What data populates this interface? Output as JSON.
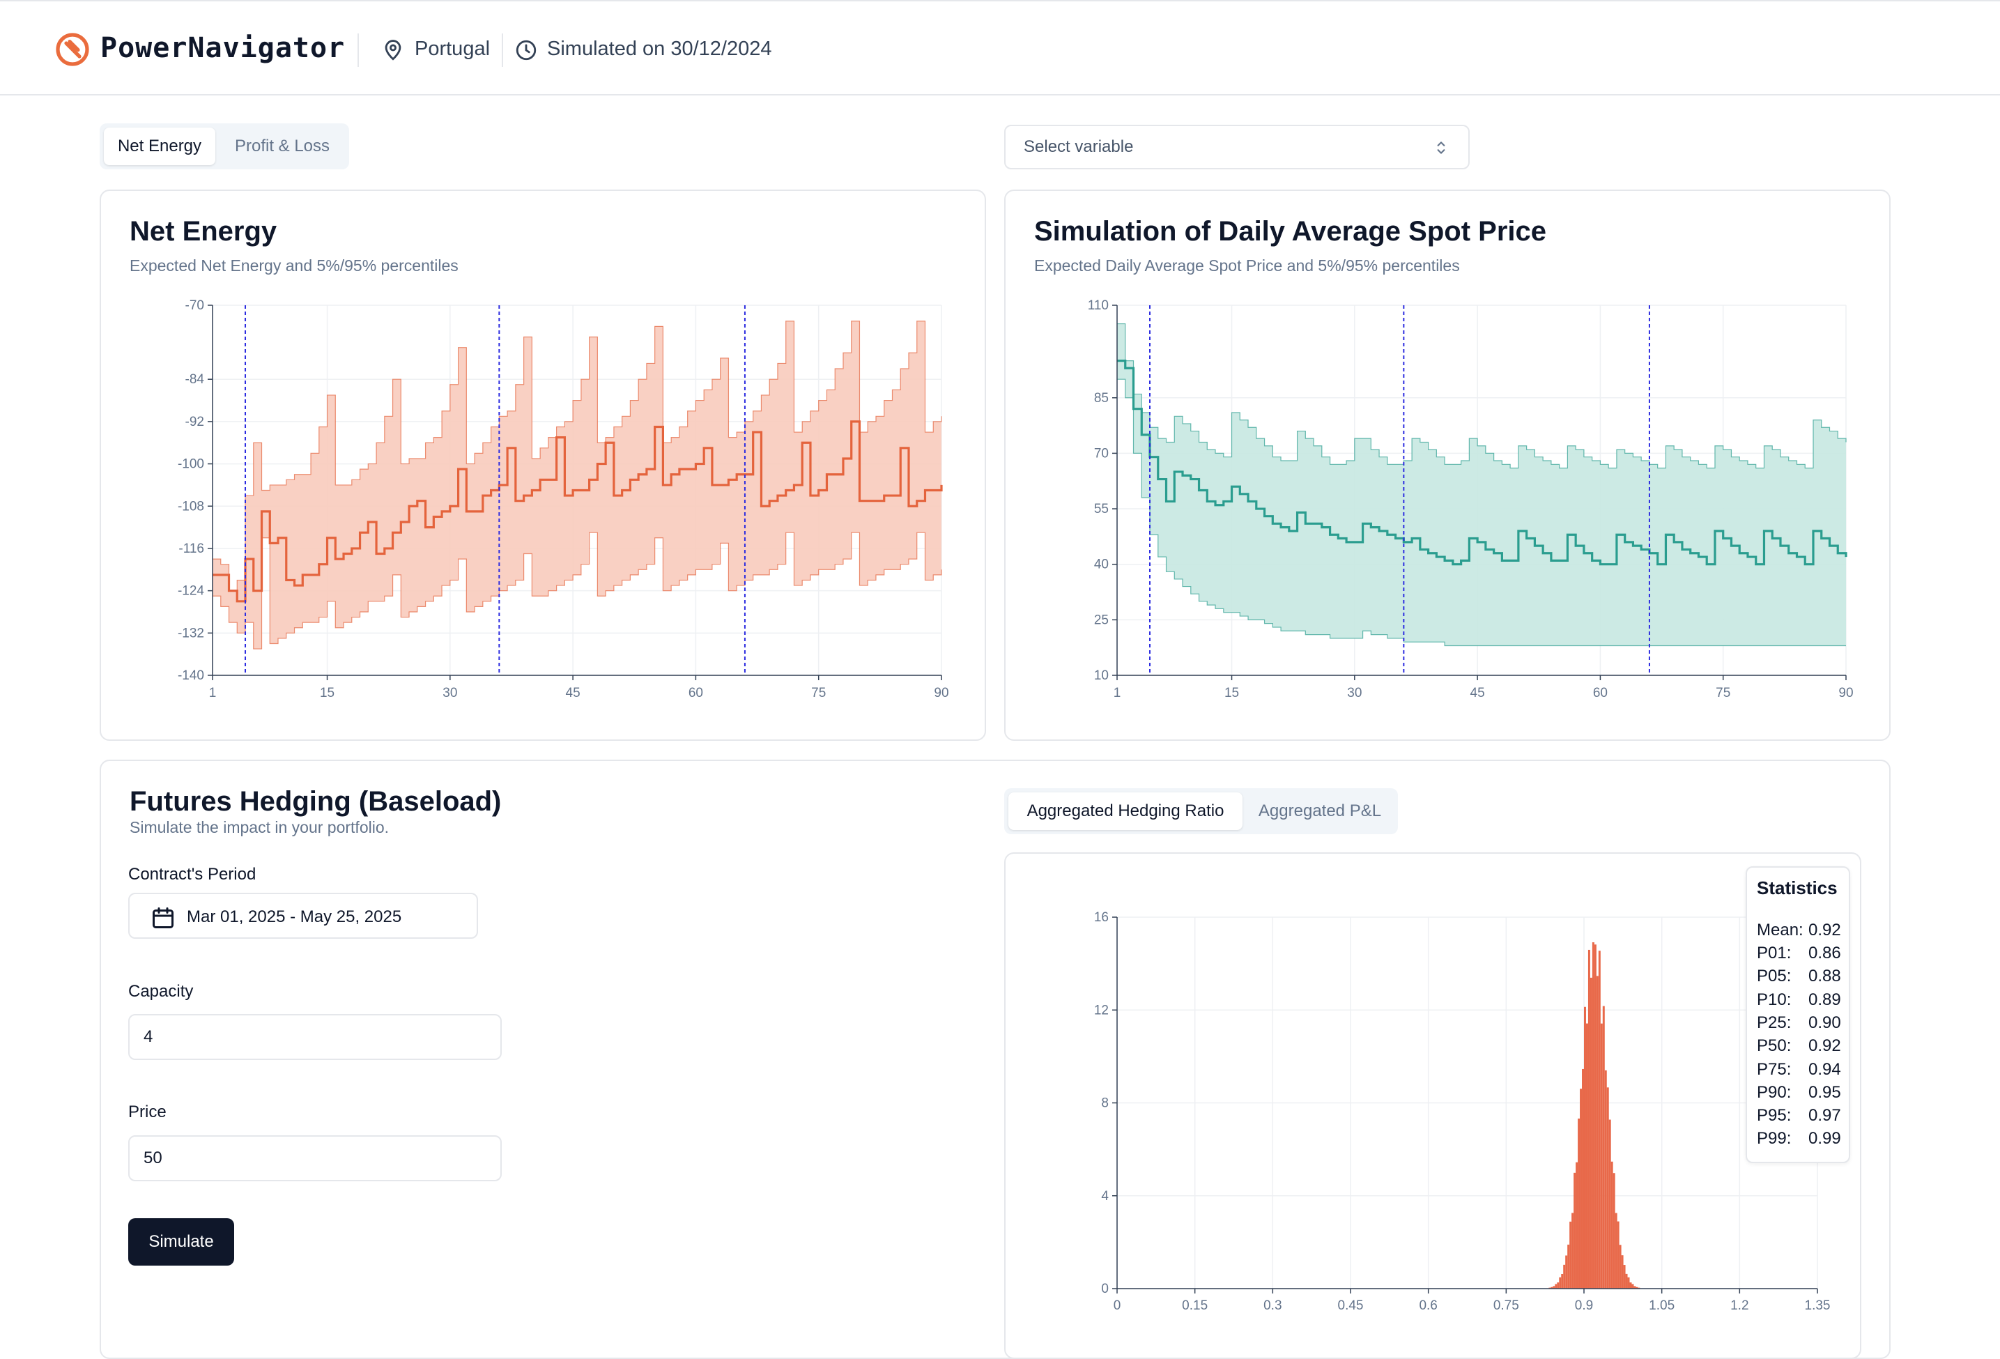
{
  "app": {
    "title": "PowerNavigator",
    "location": "Portugal",
    "simulated": "Simulated on 30/12/2024",
    "accent_color": "#ea6c3d"
  },
  "top_tabs": {
    "items": [
      {
        "label": "Net Energy",
        "active": true
      },
      {
        "label": "Profit & Loss",
        "active": false
      }
    ]
  },
  "variable_select": {
    "placeholder": "Select variable"
  },
  "net_energy_card": {
    "title": "Net Energy",
    "subtitle": "Expected Net Energy and 5%/95% percentiles"
  },
  "spot_card": {
    "title": "Simulation of Daily Average Spot Price",
    "subtitle": "Expected Daily Average Spot Price and 5%/95% percentiles"
  },
  "hedging": {
    "title": "Futures Hedging (Baseload)",
    "subtitle": "Simulate the impact in your portfolio.",
    "period_label": "Contract's Period",
    "period_value": "Mar 01, 2025 - May 25, 2025",
    "capacity_label": "Capacity",
    "capacity_value": "4",
    "price_label": "Price",
    "price_value": "50",
    "simulate_label": "Simulate"
  },
  "hist_tabs": {
    "items": [
      {
        "label": "Aggregated Hedging Ratio",
        "active": true
      },
      {
        "label": "Aggregated P&L",
        "active": false
      }
    ]
  },
  "statistics": {
    "title": "Statistics",
    "rows": [
      {
        "k": "Mean:",
        "v": "0.92"
      },
      {
        "k": "P01:",
        "v": "0.86"
      },
      {
        "k": "P05:",
        "v": "0.88"
      },
      {
        "k": "P10:",
        "v": "0.89"
      },
      {
        "k": "P25:",
        "v": "0.90"
      },
      {
        "k": "P50:",
        "v": "0.92"
      },
      {
        "k": "P75:",
        "v": "0.94"
      },
      {
        "k": "P90:",
        "v": "0.95"
      },
      {
        "k": "P95:",
        "v": "0.97"
      },
      {
        "k": "P99:",
        "v": "0.99"
      }
    ]
  },
  "chart_data": [
    {
      "type": "area",
      "title": "Net Energy",
      "subtitle": "Expected Net Energy and 5%/95% percentiles",
      "xlim": [
        1,
        90
      ],
      "ylim": [
        -140,
        -70
      ],
      "xticks": [
        1,
        15,
        30,
        45,
        60,
        75,
        90
      ],
      "yticks": [
        -70,
        -84,
        -92,
        -100,
        -108,
        -116,
        -124,
        -132,
        -140
      ],
      "vlines": [
        5,
        36,
        66
      ],
      "series_color": "#e4633c",
      "fill_color": "#f8cbbc",
      "series": [
        {
          "name": "mean",
          "values": [
            -121,
            -121,
            -124,
            -126,
            -118,
            -124,
            -109,
            -115,
            -114,
            -122,
            -123,
            -121,
            -121,
            -119,
            -114,
            -118,
            -117,
            -116,
            -113,
            -111,
            -117,
            -116,
            -113,
            -111,
            -108,
            -107,
            -112,
            -110,
            -109,
            -108,
            -101,
            -109,
            -109,
            -106,
            -105,
            -104,
            -97,
            -107,
            -106,
            -105,
            -103,
            -103,
            -95,
            -106,
            -105,
            -105,
            -103,
            -100,
            -96,
            -106,
            -105,
            -103,
            -102,
            -101,
            -93,
            -104,
            -102,
            -101,
            -101,
            -100,
            -97,
            -104,
            -104,
            -103,
            -102,
            -102,
            -94,
            -108,
            -107,
            -106,
            -105,
            -104,
            -96,
            -106,
            -105,
            -102,
            -102,
            -99,
            -92,
            -107,
            -107,
            -107,
            -106,
            -106,
            -97,
            -108,
            -107,
            -105,
            -105,
            -104
          ]
        },
        {
          "name": "p95",
          "values": [
            -118,
            -119,
            -124,
            -122,
            -106,
            -96,
            -105,
            -104,
            -104,
            -103,
            -102,
            -102,
            -98,
            -93,
            -87,
            -104,
            -104,
            -103,
            -101,
            -100,
            -96,
            -91,
            -84,
            -100,
            -99,
            -99,
            -96,
            -95,
            -90,
            -85,
            -78,
            -100,
            -98,
            -96,
            -93,
            -91,
            -90,
            -85,
            -76,
            -99,
            -97,
            -95,
            -93,
            -92,
            -88,
            -84,
            -76,
            -96,
            -95,
            -93,
            -91,
            -88,
            -84,
            -81,
            -74,
            -96,
            -95,
            -93,
            -90,
            -88,
            -86,
            -84,
            -80,
            -95,
            -94,
            -92,
            -90,
            -87,
            -84,
            -81,
            -73,
            -94,
            -92,
            -90,
            -88,
            -86,
            -82,
            -79,
            -73,
            -94,
            -92,
            -91,
            -88,
            -86,
            -82,
            -79,
            -73,
            -94,
            -92,
            -91
          ]
        },
        {
          "name": "p05",
          "values": [
            -125,
            -127,
            -130,
            -132,
            -130,
            -135,
            -114,
            -134,
            -133,
            -132,
            -131,
            -130,
            -130,
            -129,
            -126,
            -131,
            -130,
            -129,
            -128,
            -126,
            -126,
            -125,
            -121,
            -129,
            -128,
            -127,
            -126,
            -125,
            -123,
            -122,
            -118,
            -128,
            -127,
            -126,
            -125,
            -124,
            -123,
            -122,
            -117,
            -125,
            -125,
            -124,
            -123,
            -122,
            -121,
            -119,
            -113,
            -125,
            -124,
            -123,
            -122,
            -121,
            -120,
            -119,
            -114,
            -124,
            -123,
            -122,
            -121,
            -120,
            -120,
            -119,
            -115,
            -124,
            -123,
            -122,
            -121,
            -121,
            -120,
            -119,
            -113,
            -123,
            -122,
            -121,
            -120,
            -120,
            -119,
            -118,
            -113,
            -123,
            -122,
            -121,
            -120,
            -120,
            -119,
            -118,
            -113,
            -122,
            -121,
            -120
          ]
        }
      ]
    },
    {
      "type": "area",
      "title": "Simulation of Daily Average Spot Price",
      "subtitle": "Expected Daily Average Spot Price and 5%/95% percentiles",
      "xlim": [
        1,
        90
      ],
      "ylim": [
        10,
        110
      ],
      "xticks": [
        1,
        15,
        30,
        45,
        60,
        75,
        90
      ],
      "yticks": [
        10,
        25,
        40,
        55,
        70,
        85,
        110
      ],
      "vlines": [
        5,
        36,
        66
      ],
      "series_color": "#2a9d8f",
      "fill_color": "#c6e8e1",
      "series": [
        {
          "name": "mean",
          "values": [
            95,
            93,
            82,
            75,
            69,
            63,
            57,
            65,
            64,
            63,
            60,
            57,
            56,
            57,
            61,
            59,
            57,
            55,
            53,
            51,
            50,
            49,
            54,
            51,
            51,
            50,
            48,
            47,
            46,
            46,
            51,
            50,
            49,
            48,
            47,
            46,
            47,
            44,
            43,
            42,
            41,
            40,
            41,
            47,
            46,
            44,
            43,
            41,
            41,
            49,
            47,
            45,
            43,
            41,
            41,
            48,
            45,
            43,
            41,
            40,
            40,
            48,
            46,
            45,
            44,
            43,
            40,
            48,
            46,
            44,
            43,
            42,
            40,
            49,
            47,
            45,
            43,
            42,
            40,
            49,
            47,
            45,
            43,
            42,
            40,
            49,
            47,
            45,
            43,
            42
          ]
        },
        {
          "name": "p95",
          "values": [
            105,
            95,
            86,
            81,
            77,
            74,
            73,
            80,
            78,
            76,
            73,
            71,
            70,
            69,
            81,
            79,
            77,
            74,
            72,
            69,
            68,
            68,
            76,
            74,
            72,
            69,
            67,
            67,
            68,
            74,
            74,
            71,
            69,
            67,
            67,
            68,
            74,
            73,
            71,
            69,
            67,
            67,
            68,
            74,
            72,
            70,
            68,
            67,
            66,
            72,
            71,
            69,
            68,
            67,
            66,
            72,
            71,
            69,
            68,
            67,
            66,
            71,
            70,
            69,
            68,
            67,
            66,
            72,
            71,
            69,
            68,
            67,
            66,
            72,
            71,
            69,
            68,
            67,
            66,
            72,
            71,
            69,
            68,
            67,
            66,
            79,
            77,
            76,
            74,
            73
          ]
        },
        {
          "name": "p05",
          "values": [
            90,
            85,
            70,
            58,
            48,
            42,
            38,
            36,
            34,
            32,
            30,
            29,
            28,
            27,
            27,
            26,
            25,
            25,
            24,
            23,
            22,
            22,
            22,
            21,
            21,
            21,
            20,
            20,
            20,
            20,
            22,
            21,
            21,
            20,
            20,
            19,
            19,
            19,
            19,
            19,
            18,
            18,
            18,
            18,
            18,
            18,
            18,
            18,
            18,
            18,
            18,
            18,
            18,
            18,
            18,
            18,
            18,
            18,
            18,
            18,
            18,
            18,
            18,
            18,
            18,
            18,
            18,
            18,
            18,
            18,
            18,
            18,
            18,
            18,
            18,
            18,
            18,
            18,
            18,
            18,
            18,
            18,
            18,
            18,
            18,
            18,
            18,
            18,
            18,
            18
          ]
        }
      ]
    },
    {
      "type": "bar",
      "title": "Aggregated Hedging Ratio",
      "xlim": [
        0,
        1.35
      ],
      "ylim": [
        0,
        16
      ],
      "xticks": [
        0,
        0.15,
        0.3,
        0.45,
        0.6,
        0.75,
        0.9,
        1.05,
        1.2,
        1.35
      ],
      "yticks": [
        0,
        4,
        8,
        12,
        16
      ],
      "bar_color": "#e8694a",
      "distribution": {
        "mean": 0.92,
        "std": 0.025,
        "peak_density": 15.9,
        "bin_width": 0.004
      }
    }
  ]
}
